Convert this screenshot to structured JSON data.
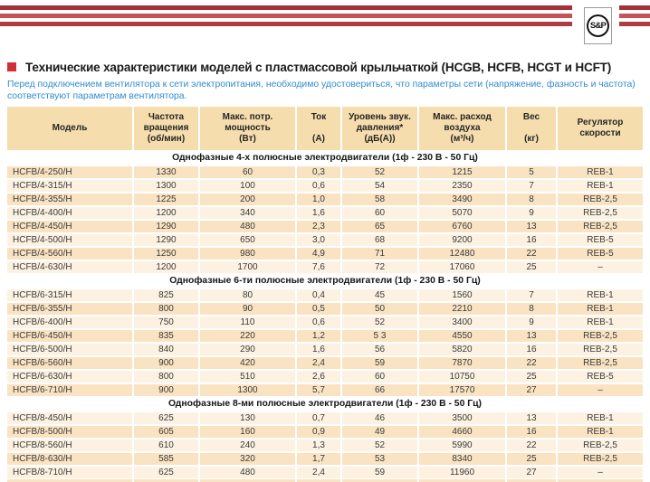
{
  "logo": {
    "text": "S&P"
  },
  "header": {
    "title": "Технические характеристики моделей с пластмассовой крыльчаткой (HCGB, HCFB, HCGT и HCFT)",
    "subtitle": "Перед подключением вентилятора к сети электропитания, необходимо удостовериться, что параметры сети (напряжение, фазность и частота) соответствуют параметрам вентилятора."
  },
  "colors": {
    "stripe_dark": "#a23238",
    "stripe_mid": "#c4525a",
    "bullet_red": "#d22e35",
    "note_blue": "#2f8dcc",
    "header_beige": "#f6ddae",
    "row_beige": "#fae3c2",
    "row_cream": "#fdf2e2"
  },
  "table": {
    "columns": [
      {
        "id": "model",
        "lines": [
          "Модель"
        ]
      },
      {
        "id": "rpm",
        "lines": [
          "Частота",
          "вращения",
          "(об/мин)"
        ]
      },
      {
        "id": "power",
        "lines": [
          "Макс. потр.",
          "мощность",
          "(Вт)"
        ]
      },
      {
        "id": "current",
        "lines": [
          "Ток",
          "",
          "(А)"
        ]
      },
      {
        "id": "noise",
        "lines": [
          "Уровень звук.",
          "давления*",
          "(дБ(А))"
        ]
      },
      {
        "id": "airflow",
        "lines": [
          "Макс. расход",
          "воздуха",
          "(м³/ч)"
        ]
      },
      {
        "id": "weight",
        "lines": [
          "Вес",
          "",
          "(кг)"
        ]
      },
      {
        "id": "regulator",
        "lines": [
          "Регулятор",
          "скорости"
        ]
      }
    ],
    "sections": [
      {
        "title": "Однофазные 4-х полюсные электродвигатели (1ф - 230 В - 50 Гц)",
        "rows": [
          [
            "HCFB/4-250/H",
            "1330",
            "60",
            "0,3",
            "52",
            "1215",
            "5",
            "REB-1"
          ],
          [
            "HCFB/4-315/H",
            "1300",
            "100",
            "0,6",
            "54",
            "2350",
            "7",
            "REB-1"
          ],
          [
            "HCFB/4-355/H",
            "1225",
            "200",
            "1,0",
            "58",
            "3490",
            "8",
            "REB-2,5"
          ],
          [
            "HCFB/4-400/H",
            "1200",
            "340",
            "1,6",
            "60",
            "5070",
            "9",
            "REB-2,5"
          ],
          [
            "HCFB/4-450/H",
            "1290",
            "480",
            "2,3",
            "65",
            "6760",
            "13",
            "REB-2,5"
          ],
          [
            "HCFB/4-500/H",
            "1290",
            "650",
            "3,0",
            "68",
            "9200",
            "16",
            "REB-5"
          ],
          [
            "HCFB/4-560/H",
            "1250",
            "980",
            "4,9",
            "71",
            "12480",
            "22",
            "REB-5"
          ],
          [
            "HCFB/4-630/H",
            "1200",
            "1700",
            "7,6",
            "72",
            "17060",
            "25",
            "–"
          ]
        ]
      },
      {
        "title": "Однофазные 6-ти полюсные электродвигатели (1ф - 230 В - 50 Гц)",
        "rows": [
          [
            "HCFB/6-315/H",
            "825",
            "80",
            "0,4",
            "45",
            "1560",
            "7",
            "REB-1"
          ],
          [
            "HCFB/6-355/H",
            "800",
            "90",
            "0,5",
            "50",
            "2210",
            "8",
            "REB-1"
          ],
          [
            "HCFB/6-400/H",
            "750",
            "110",
            "0,6",
            "52",
            "3400",
            "9",
            "REB-1"
          ],
          [
            "HCFB/6-450/H",
            "835",
            "220",
            "1,2",
            "5 3",
            "4550",
            "13",
            "REB-2,5"
          ],
          [
            "HCFB/6-500/H",
            "840",
            "290",
            "1,6",
            "56",
            "5820",
            "16",
            "REB-2,5"
          ],
          [
            "HCFB/6-560/H",
            "900",
            "420",
            "2,4",
            "59",
            "7870",
            "22",
            "REB-2,5"
          ],
          [
            "HCFB/6-630/H",
            "800",
            "510",
            "2,6",
            "60",
            "10750",
            "25",
            "REB-5"
          ],
          [
            "HCFB/6-710/H",
            "900",
            "1300",
            "5,7",
            "66",
            "17570",
            "27",
            "–"
          ]
        ]
      },
      {
        "title": "Однофазные 8-ми полюсные электродвигатели (1ф - 230 В - 50 Гц)",
        "rows": [
          [
            "HCFB/8-450/H",
            "625",
            "130",
            "0,7",
            "46",
            "3500",
            "13",
            "REB-1"
          ],
          [
            "HCFB/8-500/H",
            "605",
            "160",
            "0,9",
            "49",
            "4660",
            "16",
            "REB-1"
          ],
          [
            "HCFB/8-560/H",
            "610",
            "240",
            "1,3",
            "52",
            "5990",
            "22",
            "REB-2,5"
          ],
          [
            "HCFB/8-630/H",
            "585",
            "320",
            "1,7",
            "53",
            "8340",
            "25",
            "REB-2,5"
          ],
          [
            "HCFB/8-710/H",
            "625",
            "480",
            "2,4",
            "59",
            "11960",
            "27",
            "–"
          ]
        ]
      }
    ]
  }
}
